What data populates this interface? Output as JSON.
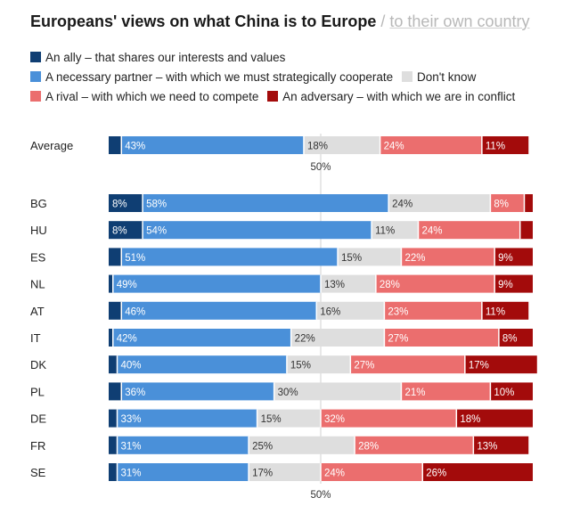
{
  "title": {
    "main": "Europeans' views on what China is to Europe",
    "separator": "/",
    "secondary": "to their own country"
  },
  "colors": {
    "ally": "#0f3e73",
    "partner": "#4a90d9",
    "dont_know": "#dedede",
    "rival": "#eb6e6e",
    "adversary": "#a30b0b",
    "text_on_dark": "#ffffff",
    "text_on_light": "#333333"
  },
  "chart_data": {
    "type": "bar",
    "orientation": "horizontal",
    "stacked": true,
    "title": "Europeans' views on what China is to Europe / to their own country",
    "xlim": [
      0,
      100
    ],
    "reference_line": {
      "value": 50,
      "label": "50%"
    },
    "series": [
      {
        "key": "ally",
        "name": "An ally – that shares our interests and values"
      },
      {
        "key": "partner",
        "name": "A necessary partner – with which we must strategically cooperate"
      },
      {
        "key": "dont_know",
        "name": "Don't know"
      },
      {
        "key": "rival",
        "name": "A rival – with which we need to compete"
      },
      {
        "key": "adversary",
        "name": "An adversary – with which we are in conflict"
      }
    ],
    "average": {
      "label": "Average",
      "values": [
        3,
        43,
        18,
        24,
        11
      ],
      "labels": [
        "",
        "43%",
        "18%",
        "24%",
        "11%"
      ]
    },
    "countries": [
      {
        "label": "BG",
        "values": [
          8,
          58,
          24,
          8,
          2
        ],
        "labels": [
          "8%",
          "58%",
          "24%",
          "8%",
          ""
        ]
      },
      {
        "label": "HU",
        "values": [
          8,
          54,
          11,
          24,
          3
        ],
        "labels": [
          "8%",
          "54%",
          "11%",
          "24%",
          ""
        ]
      },
      {
        "label": "ES",
        "values": [
          3,
          51,
          15,
          22,
          9
        ],
        "labels": [
          "",
          "51%",
          "15%",
          "22%",
          "9%"
        ]
      },
      {
        "label": "NL",
        "values": [
          1,
          49,
          13,
          28,
          9
        ],
        "labels": [
          "",
          "49%",
          "13%",
          "28%",
          "9%"
        ]
      },
      {
        "label": "AT",
        "values": [
          3,
          46,
          16,
          23,
          11
        ],
        "labels": [
          "",
          "46%",
          "16%",
          "23%",
          "11%"
        ]
      },
      {
        "label": "IT",
        "values": [
          1,
          42,
          22,
          27,
          8
        ],
        "labels": [
          "",
          "42%",
          "22%",
          "27%",
          "8%"
        ]
      },
      {
        "label": "DK",
        "values": [
          2,
          40,
          15,
          27,
          17
        ],
        "labels": [
          "",
          "40%",
          "15%",
          "27%",
          "17%"
        ]
      },
      {
        "label": "PL",
        "values": [
          3,
          36,
          30,
          21,
          10
        ],
        "labels": [
          "",
          "36%",
          "30%",
          "21%",
          "10%"
        ]
      },
      {
        "label": "DE",
        "values": [
          2,
          33,
          15,
          32,
          18
        ],
        "labels": [
          "",
          "33%",
          "15%",
          "32%",
          "18%"
        ]
      },
      {
        "label": "FR",
        "values": [
          2,
          31,
          25,
          28,
          13
        ],
        "labels": [
          "",
          "31%",
          "25%",
          "28%",
          "13%"
        ]
      },
      {
        "label": "SE",
        "values": [
          2,
          31,
          17,
          24,
          26
        ],
        "labels": [
          "",
          "31%",
          "17%",
          "24%",
          "26%"
        ]
      }
    ]
  }
}
